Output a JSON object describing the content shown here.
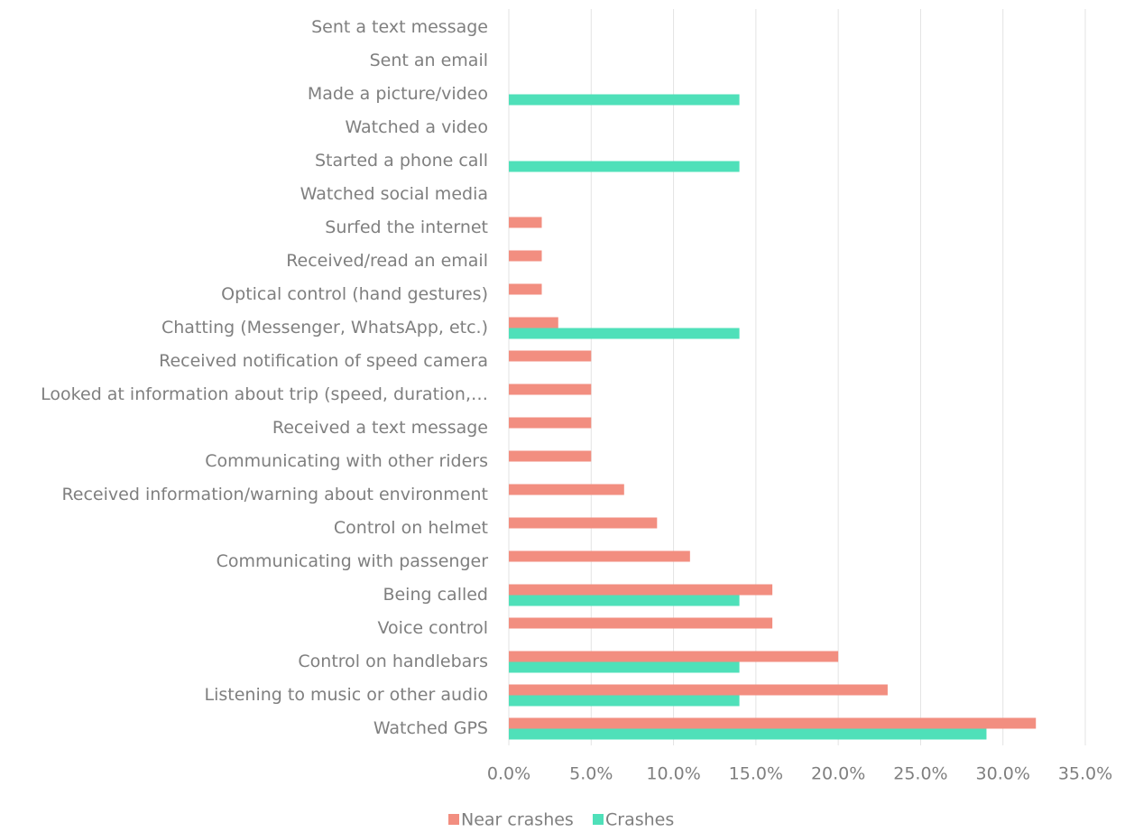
{
  "chart_data": {
    "type": "bar",
    "orientation": "horizontal",
    "categories": [
      "Sent a text message",
      "Sent an email",
      "Made a picture/video",
      "Watched a video",
      "Started a phone call",
      "Watched social media",
      "Surfed the internet",
      "Received/read an email",
      "Optical control (hand gestures)",
      "Chatting (Messenger, WhatsApp, etc.)",
      "Received notification of speed camera",
      "Looked at information about trip (speed, duration,…",
      "Received a text message",
      "Communicating with other riders",
      "Received information/warning about environment",
      "Control on helmet",
      "Communicating with passenger",
      "Being called",
      "Voice control",
      "Control on handlebars",
      "Listening to music or other audio",
      "Watched GPS"
    ],
    "series": [
      {
        "name": "Near crashes",
        "color": "#f28e80",
        "values": [
          0,
          0,
          0,
          0,
          0,
          0,
          2,
          2,
          2,
          3,
          5,
          5,
          5,
          5,
          7,
          9,
          11,
          16,
          16,
          20,
          23,
          32
        ]
      },
      {
        "name": "Crashes",
        "color": "#4fe0b9",
        "values": [
          0,
          0,
          14,
          0,
          14,
          0,
          0,
          0,
          0,
          14,
          0,
          0,
          0,
          0,
          0,
          0,
          0,
          14,
          0,
          14,
          14,
          29
        ]
      }
    ],
    "xlim": [
      0,
      35
    ],
    "xticks": [
      {
        "value": 0,
        "label": "0.0%"
      },
      {
        "value": 5,
        "label": "5.0%"
      },
      {
        "value": 10,
        "label": "10.0%"
      },
      {
        "value": 15,
        "label": "15.0%"
      },
      {
        "value": 20,
        "label": "20.0%"
      },
      {
        "value": 25,
        "label": "25.0%"
      },
      {
        "value": 30,
        "label": "30.0%"
      },
      {
        "value": 35,
        "label": "35.0%"
      }
    ],
    "grid": true,
    "legend": "bottom"
  }
}
